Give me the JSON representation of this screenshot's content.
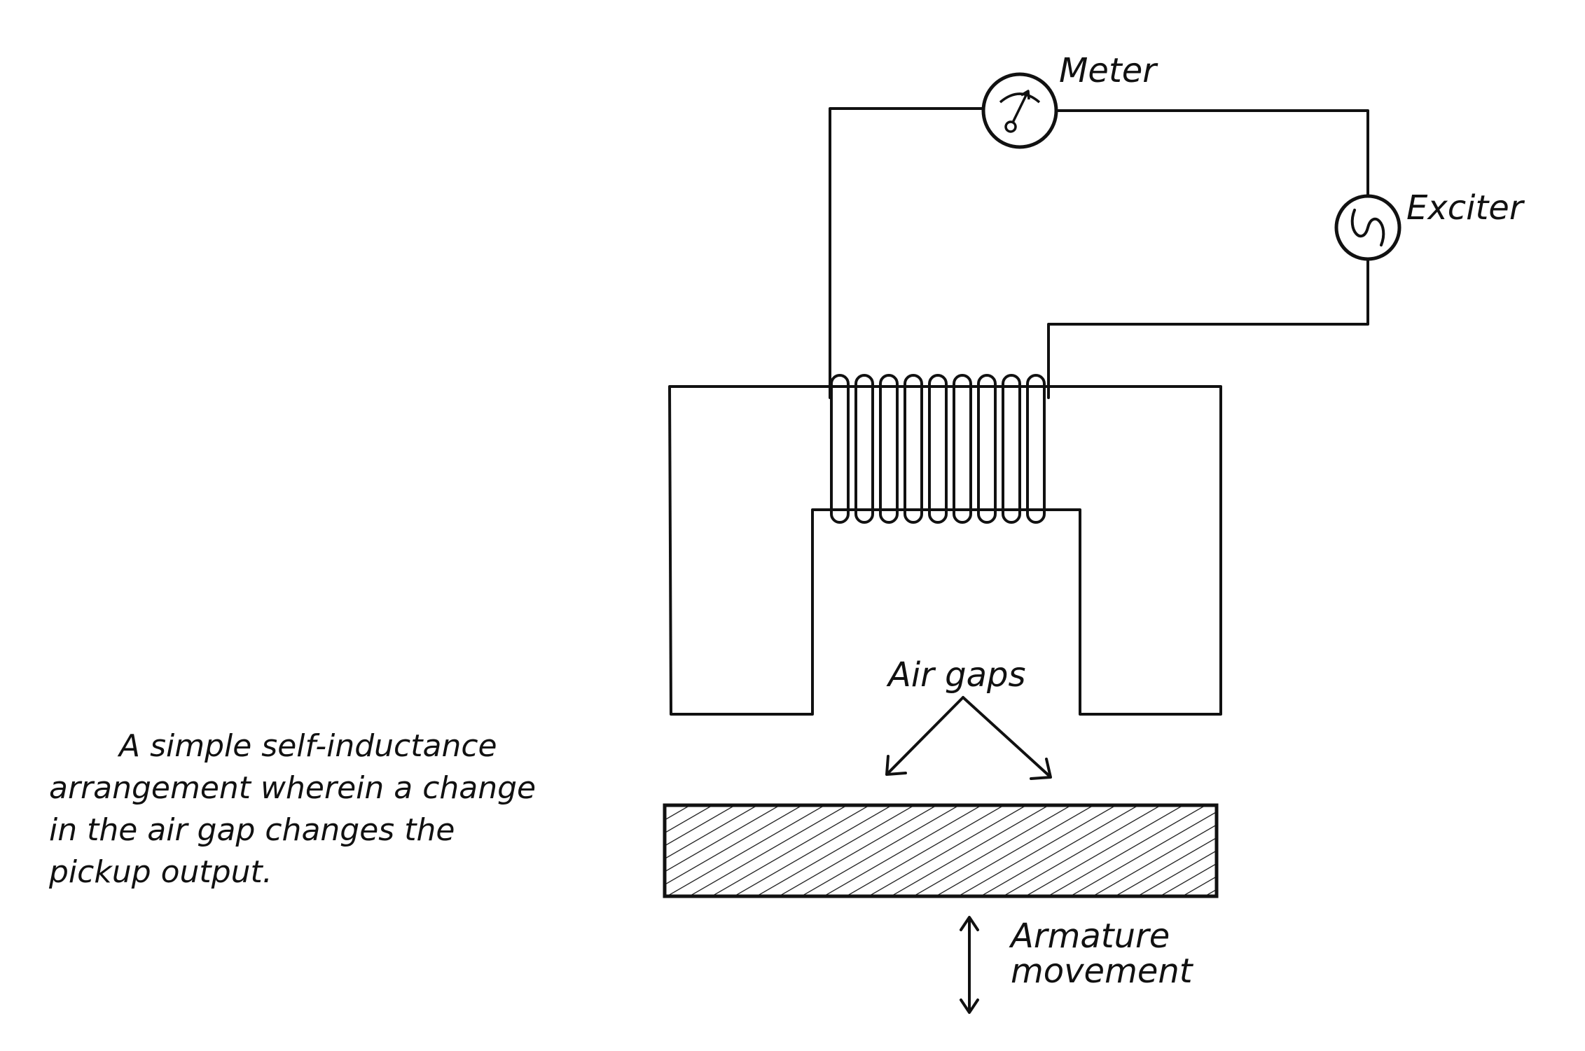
{
  "labels": {
    "meter": "Meter",
    "exciter": "Exciter",
    "air_gaps": "Air gaps",
    "armature_line1": "Armature",
    "armature_line2": "movement"
  },
  "caption": {
    "line1": "A simple self-inductance",
    "line2": "arrangement wherein a change",
    "line3": "in the air gap changes the",
    "line4": "pickup output."
  },
  "icons": {
    "meter": "meter-dial-icon",
    "exciter": "ac-source-icon"
  },
  "colors": {
    "ink": "#111111",
    "background": "#ffffff"
  }
}
